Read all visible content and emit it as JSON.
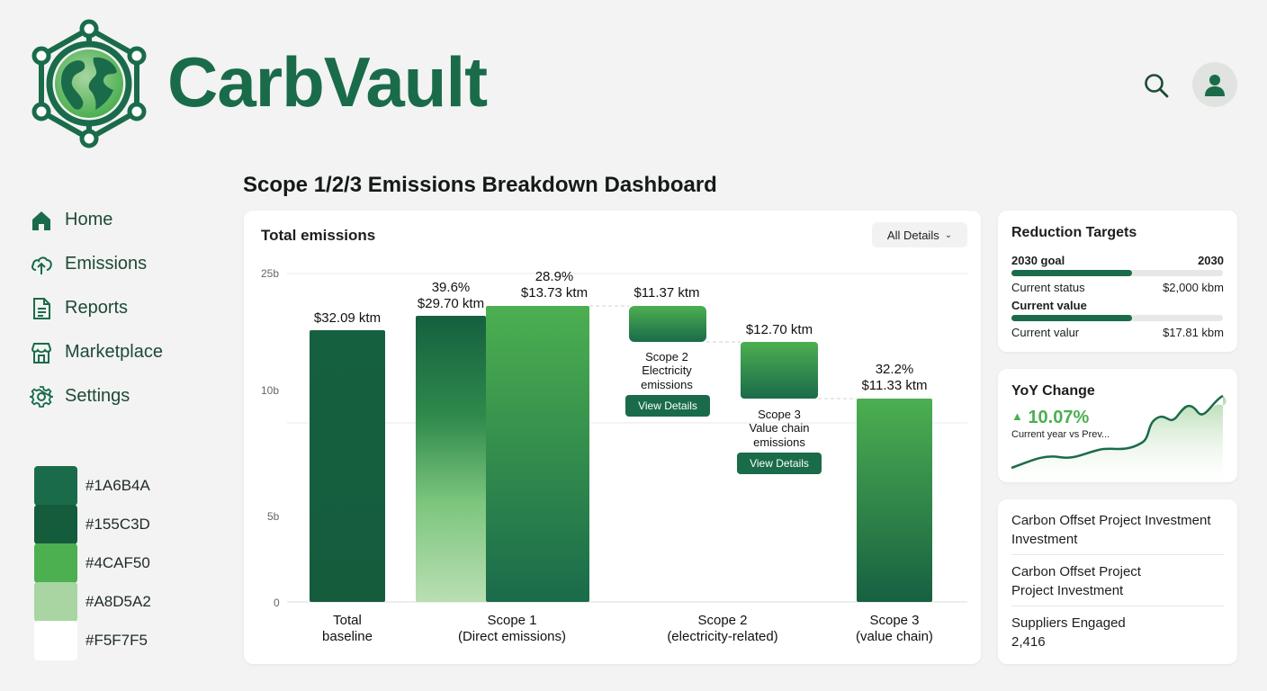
{
  "brand": {
    "name": "CarbVault"
  },
  "header": {
    "search_icon": "search-icon",
    "avatar_icon": "user-icon"
  },
  "sidebar": {
    "items": [
      {
        "label": "Home",
        "icon": "home-icon"
      },
      {
        "label": "Emissions",
        "icon": "cloud-upload-icon"
      },
      {
        "label": "Reports",
        "icon": "document-icon"
      },
      {
        "label": "Marketplace",
        "icon": "store-icon"
      },
      {
        "label": "Settings",
        "icon": "gear-icon"
      }
    ]
  },
  "palette": [
    {
      "hex": "#1A6B4A"
    },
    {
      "hex": "#155C3D"
    },
    {
      "hex": "#4CAF50"
    },
    {
      "hex": "#A8D5A2"
    },
    {
      "hex": "#F5F7F5"
    }
  ],
  "page_title": "Scope 1/2/3 Emissions Breakdown Dashboard",
  "chart_card": {
    "title": "Total emissions",
    "filter_label": "All Details",
    "view_details_label": "View Details"
  },
  "chart_data": {
    "type": "bar",
    "y_ticks": [
      "25b",
      "10b",
      "5b",
      "0"
    ],
    "categories": [
      {
        "line1": "Total",
        "line2": "baseline"
      },
      {
        "line1": "Scope 1",
        "line2": "(Direct emissions)"
      },
      {
        "line1": "Scope 2",
        "line2": "(electricity-related)"
      },
      {
        "line1": "Scope 3",
        "line2": "(value chain)"
      }
    ],
    "bars": [
      {
        "value_label": "$32.09 ktm",
        "pct_label": ""
      },
      {
        "value_label": "$29.70 ktm",
        "pct_label": "39.6%"
      },
      {
        "value_label": "$13.73 ktm",
        "pct_label": "28.9%"
      },
      {
        "value_label": "$11.37 ktm",
        "pct_label": "",
        "note": [
          "Scope 2",
          "Electricity",
          "emissions"
        ]
      },
      {
        "value_label": "$12.70 ktm",
        "pct_label": "",
        "note": [
          "Scope 3",
          "Value chain",
          "emissions"
        ]
      },
      {
        "value_label": "$11.33 ktm",
        "pct_label": "32.2%"
      }
    ]
  },
  "reduction_targets": {
    "title": "Reduction Targets",
    "goal_label": "2030 goal",
    "goal_value": "2030",
    "goal_progress": 0.57,
    "status_label": "Current status",
    "status_value": "$2,000 kbm",
    "current_label": "Current value",
    "current_progress": 0.57,
    "current2_label": "Current valur",
    "current2_value": "$17.81 kbm"
  },
  "yoy": {
    "title": "YoY Change",
    "value": "10.07%",
    "subtitle": "Current year vs Prev..."
  },
  "offsets": {
    "items": [
      {
        "line1": "Carbon Offset Project Investment",
        "line2": "Investment"
      },
      {
        "line1": "Carbon Offset Project",
        "line2": "Project Investment"
      },
      {
        "line1": "Suppliers Engaged",
        "line2": "2,416"
      }
    ]
  }
}
